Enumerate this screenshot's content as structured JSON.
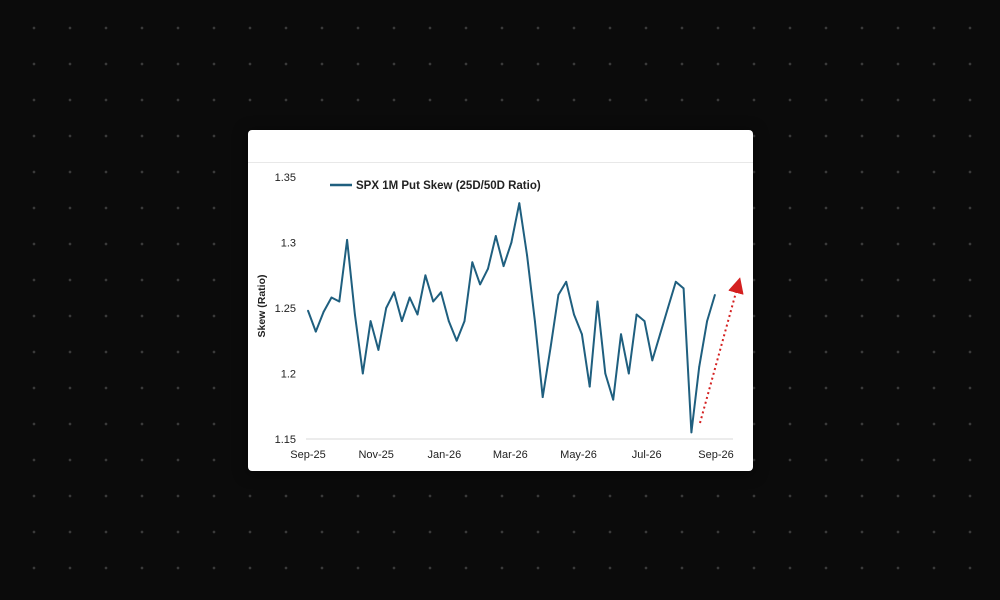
{
  "chart_data": {
    "type": "line",
    "title": "",
    "xlabel": "",
    "ylabel": "Skew (Ratio)",
    "ylim": [
      1.15,
      1.35
    ],
    "yticks": [
      "1.15",
      "1.2",
      "1.25",
      "1.3",
      "1.35"
    ],
    "xticks": [
      "Sep-25",
      "Nov-25",
      "Jan-26",
      "Mar-26",
      "May-26",
      "Jul-26",
      "Sep-26"
    ],
    "legend_position": "top-left",
    "grid": false,
    "colors": {
      "series": "#1f5f7f",
      "annotation_arrow": "#d42020"
    },
    "annotation": "red dotted upward arrow at the right end",
    "series": [
      {
        "name": "SPX 1M Put Skew (25D/50D Ratio)",
        "x": [
          "2025-09-01",
          "2025-09-08",
          "2025-09-15",
          "2025-09-22",
          "2025-09-29",
          "2025-10-06",
          "2025-10-13",
          "2025-10-20",
          "2025-10-27",
          "2025-11-03",
          "2025-11-10",
          "2025-11-17",
          "2025-11-24",
          "2025-12-01",
          "2025-12-08",
          "2025-12-15",
          "2025-12-22",
          "2025-12-29",
          "2026-01-05",
          "2026-01-12",
          "2026-01-19",
          "2026-01-26",
          "2026-02-02",
          "2026-02-09",
          "2026-02-16",
          "2026-02-23",
          "2026-03-02",
          "2026-03-09",
          "2026-03-16",
          "2026-03-23",
          "2026-03-30",
          "2026-04-06",
          "2026-04-13",
          "2026-04-20",
          "2026-04-27",
          "2026-05-04",
          "2026-05-11",
          "2026-05-18",
          "2026-05-25",
          "2026-06-01",
          "2026-06-08",
          "2026-06-15",
          "2026-06-22",
          "2026-06-29",
          "2026-07-06",
          "2026-07-13",
          "2026-07-20",
          "2026-07-27",
          "2026-08-03",
          "2026-08-10",
          "2026-08-17",
          "2026-08-24",
          "2026-08-31"
        ],
        "values": [
          1.248,
          1.232,
          1.247,
          1.258,
          1.255,
          1.302,
          1.245,
          1.2,
          1.24,
          1.218,
          1.25,
          1.262,
          1.24,
          1.258,
          1.245,
          1.275,
          1.255,
          1.262,
          1.24,
          1.225,
          1.24,
          1.285,
          1.268,
          1.28,
          1.305,
          1.282,
          1.3,
          1.33,
          1.29,
          1.24,
          1.182,
          1.22,
          1.26,
          1.27,
          1.245,
          1.23,
          1.19,
          1.255,
          1.2,
          1.18,
          1.23,
          1.2,
          1.245,
          1.24,
          1.21,
          1.23,
          1.25,
          1.27,
          1.265,
          1.155,
          1.205,
          1.24,
          1.26
        ]
      }
    ]
  }
}
